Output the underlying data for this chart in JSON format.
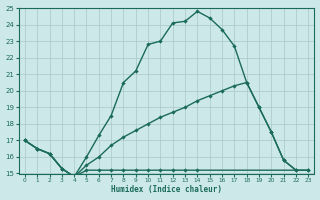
{
  "xlabel": "Humidex (Indice chaleur)",
  "bg_color": "#cde8e8",
  "grid_color": "#a8c8c8",
  "line_color": "#1a6b5a",
  "xlim": [
    -0.5,
    23.5
  ],
  "ylim": [
    15,
    25
  ],
  "curve1_x": [
    0,
    1,
    2,
    3,
    4,
    5,
    6,
    7,
    8,
    9,
    10,
    11,
    12,
    13,
    14,
    15,
    16,
    17,
    18,
    19,
    20,
    21,
    22
  ],
  "curve1_y": [
    17.0,
    16.5,
    16.2,
    15.3,
    14.8,
    16.0,
    17.3,
    18.5,
    20.5,
    21.2,
    22.8,
    23.0,
    24.1,
    24.2,
    24.8,
    24.4,
    23.7,
    22.7,
    20.5,
    19.0,
    17.5,
    15.8,
    15.2
  ],
  "curve2_x": [
    0,
    1,
    2,
    3,
    4,
    5,
    6,
    7,
    8,
    9,
    10,
    11,
    12,
    13,
    14,
    15,
    16,
    17,
    18,
    19,
    20,
    21,
    22,
    23
  ],
  "curve2_y": [
    17.0,
    16.5,
    16.2,
    15.3,
    14.8,
    15.5,
    16.0,
    16.7,
    17.2,
    17.6,
    18.0,
    18.4,
    18.7,
    19.0,
    19.4,
    19.7,
    20.0,
    20.3,
    20.5,
    19.0,
    17.5,
    15.8,
    15.2,
    15.2
  ],
  "curve3_x": [
    0,
    1,
    2,
    3,
    4,
    5,
    6,
    7,
    8,
    9,
    10,
    11,
    12,
    13,
    14,
    23
  ],
  "curve3_y": [
    17.0,
    16.5,
    16.2,
    15.3,
    14.8,
    15.2,
    15.2,
    15.2,
    15.2,
    15.2,
    15.2,
    15.2,
    15.2,
    15.2,
    15.2,
    15.2
  ]
}
